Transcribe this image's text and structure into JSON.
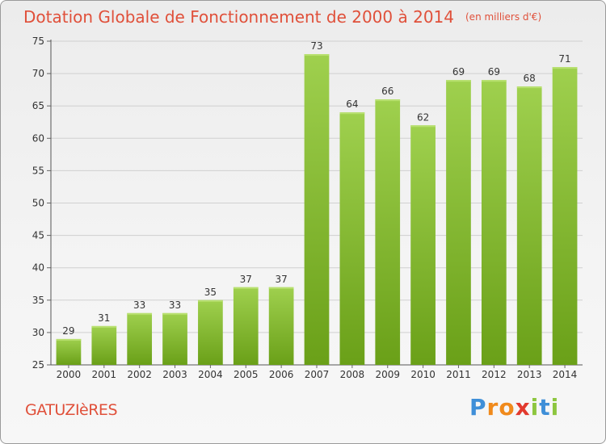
{
  "title": "Dotation Globale de Fonctionnement de 2000 à 2014",
  "subtitle": "(en milliers d'€)",
  "commune": "GATUZIèRES",
  "logo": {
    "letters": [
      "P",
      "r",
      "o",
      "x",
      "i",
      "t",
      "i"
    ],
    "colors": [
      "#3f8fd8",
      "#f08a1c",
      "#f08a1c",
      "#e23a2e",
      "#8dc63f",
      "#3f8fd8",
      "#8dc63f"
    ]
  },
  "colors": {
    "bar_top": "#9fd04e",
    "bar_bottom": "#6aa018",
    "title": "#e0503a"
  },
  "chart_data": {
    "type": "bar",
    "categories": [
      "2000",
      "2001",
      "2002",
      "2003",
      "2004",
      "2005",
      "2006",
      "2007",
      "2008",
      "2009",
      "2010",
      "2011",
      "2012",
      "2013",
      "2014"
    ],
    "values": [
      29,
      31,
      33,
      33,
      35,
      37,
      37,
      73,
      64,
      66,
      62,
      69,
      69,
      68,
      71
    ],
    "ylim": [
      25,
      75
    ],
    "yticks": [
      25,
      30,
      35,
      40,
      45,
      50,
      55,
      60,
      65,
      70,
      75
    ],
    "grid": true,
    "legend": "none"
  }
}
